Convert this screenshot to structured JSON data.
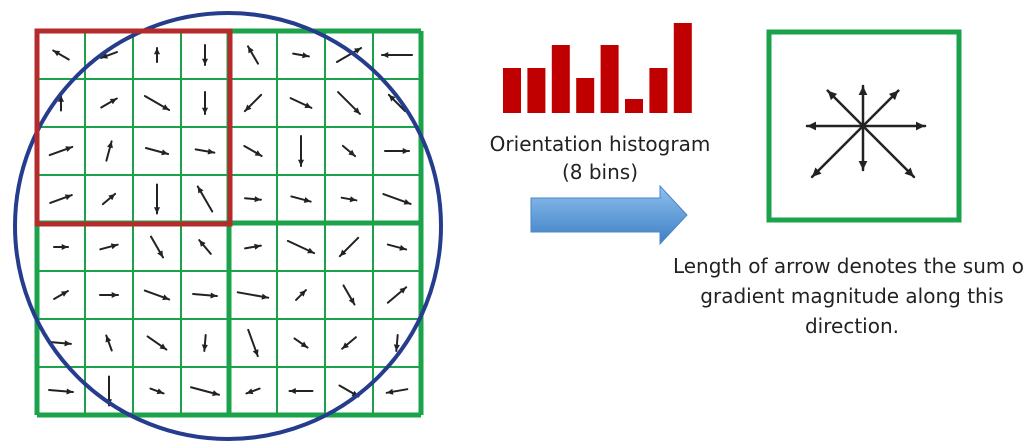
{
  "histogram": {
    "title": "Orientation histogram",
    "subtitle": "(8 bins)",
    "bin_values": [
      45,
      45,
      68,
      35,
      68,
      14,
      45,
      90
    ],
    "color": "#c00000"
  },
  "descriptor": {
    "caption": "Length of arrow denotes the sum of gradient magnitude along this direction.",
    "arrow_lengths": [
      62,
      50,
      40,
      50,
      56,
      72,
      44,
      72
    ],
    "box_color": "#1aa34a"
  },
  "grid": {
    "cells_per_side": 8,
    "line_color": "#1aa34a",
    "highlight_color": "#b52a2a",
    "circle_color": "#263c8c"
  },
  "flow_arrow": {
    "color": "#5b9bd5"
  }
}
